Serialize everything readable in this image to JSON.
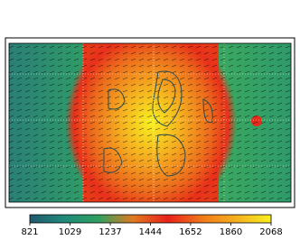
{
  "chart_data": {
    "type": "heatmap",
    "colorbar": {
      "clim": [
        821,
        2068
      ],
      "ticks": [
        821,
        1029,
        1237,
        1444,
        1652,
        1860,
        2068
      ],
      "colors": [
        "#1f5a6e",
        "#1f8a7a",
        "#2fa060",
        "#e07a20",
        "#e8201a",
        "#f07a1a",
        "#f5b020",
        "#f8f020"
      ]
    }
  }
}
